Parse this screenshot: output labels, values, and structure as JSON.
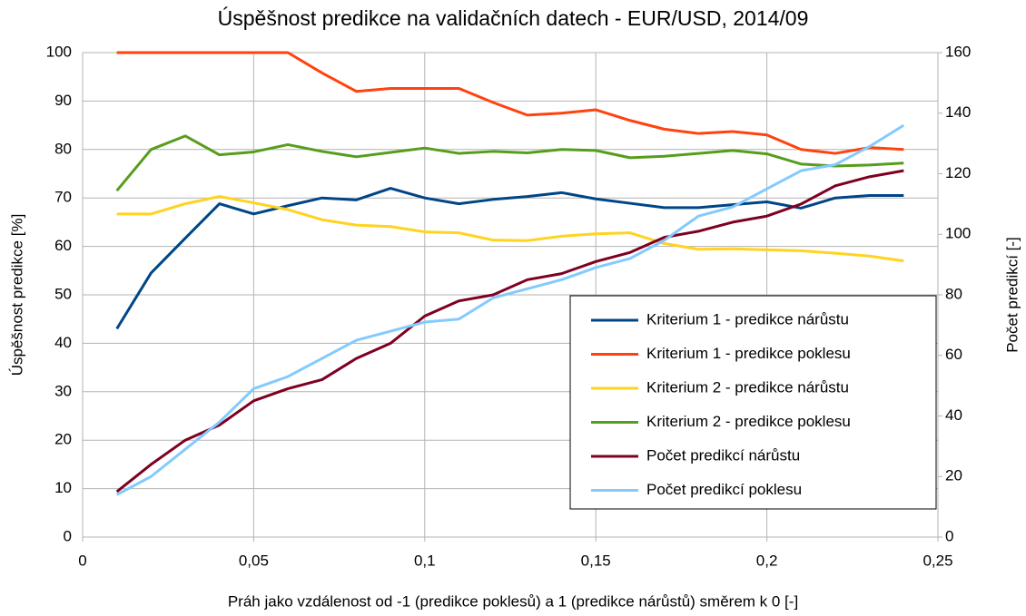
{
  "chart_data": {
    "type": "line",
    "title": "Úspěšnost predikce na validačních datech - EUR/USD, 2014/09",
    "xlabel": "Práh jako vzdálenost od -1 (predikce poklesů) a 1 (predikce nárůstů) směrem k 0 [-]",
    "ylabel": "Úspěšnost predikce [%]",
    "y2label": "Počet predikcí [-]",
    "x": [
      0.01,
      0.02,
      0.03,
      0.04,
      0.05,
      0.06,
      0.07,
      0.08,
      0.09,
      0.1,
      0.11,
      0.12,
      0.13,
      0.14,
      0.15,
      0.16,
      0.17,
      0.18,
      0.19,
      0.2,
      0.21,
      0.22,
      0.23,
      0.24
    ],
    "series": [
      {
        "name": "Kriterium 1 - predikce nárůstu",
        "color": "#004586",
        "values": [
          43,
          54.5,
          61.7,
          68.8,
          66.7,
          68.4,
          70,
          69.6,
          72,
          70,
          68.8,
          69.7,
          70.3,
          71.1,
          69.8,
          68.9,
          68,
          68,
          68.6,
          69.2,
          67.9,
          70,
          70.5,
          70.5
        ]
      },
      {
        "name": "Kriterium 1 - predikce poklesu",
        "color": "#ff420e",
        "values": [
          100,
          100,
          100,
          100,
          100,
          100,
          95.8,
          92,
          92.6,
          92.6,
          92.6,
          89.7,
          87.1,
          87.5,
          88.2,
          86,
          84.2,
          83.3,
          83.7,
          83,
          80,
          79.2,
          80.4,
          80
        ]
      },
      {
        "name": "Kriterium 2 - predikce nárůstu",
        "color": "#ffd320",
        "values": [
          66.7,
          66.7,
          68.8,
          70.3,
          69,
          67.6,
          65.5,
          64.4,
          64.1,
          63,
          62.8,
          61.3,
          61.2,
          62.1,
          62.6,
          62.8,
          60.6,
          59.4,
          59.5,
          59.3,
          59.1,
          58.6,
          58,
          57
        ]
      },
      {
        "name": "Kriterium 2 - predikce poklesu",
        "color": "#579d1c",
        "values": [
          71.5,
          80,
          82.8,
          78.9,
          79.5,
          81,
          79.6,
          78.5,
          79.4,
          80.3,
          79.2,
          79.6,
          79.3,
          80,
          79.8,
          78.3,
          78.6,
          79.2,
          79.8,
          79.1,
          77,
          76.6,
          76.8,
          77.2
        ]
      },
      {
        "name": "Počet predikcí nárůstu",
        "color": "#7e0021",
        "axis": "y2",
        "values": [
          15,
          24,
          32,
          37,
          45,
          49,
          52,
          59,
          64,
          73,
          78,
          80,
          85,
          87,
          91,
          94,
          99,
          101,
          104,
          106,
          110,
          116,
          119,
          121
        ]
      },
      {
        "name": "Počet predikcí poklesu",
        "color": "#83caff",
        "axis": "y2",
        "values": [
          14,
          20,
          29,
          38,
          49,
          53,
          59,
          65,
          68,
          71,
          72,
          79,
          82,
          85,
          89,
          92,
          98,
          106,
          109,
          115,
          121,
          123,
          129,
          136
        ]
      }
    ],
    "xlim": [
      0,
      0.25
    ],
    "xticks": [
      0,
      {
        "value": 0.05,
        "label": "0,05"
      },
      {
        "value": 0.1,
        "label": "0,1"
      },
      {
        "value": 0.15,
        "label": "0,15"
      },
      {
        "value": 0.2,
        "label": "0,2"
      },
      {
        "value": 0.25,
        "label": "0,25"
      }
    ],
    "ylim": [
      0,
      100
    ],
    "yticks": [
      0,
      10,
      20,
      30,
      40,
      50,
      60,
      70,
      80,
      90,
      100
    ],
    "y2lim": [
      0,
      160
    ],
    "y2ticks": [
      0,
      20,
      40,
      60,
      80,
      100,
      120,
      140,
      160
    ],
    "grid": true,
    "legend": "lower right"
  }
}
